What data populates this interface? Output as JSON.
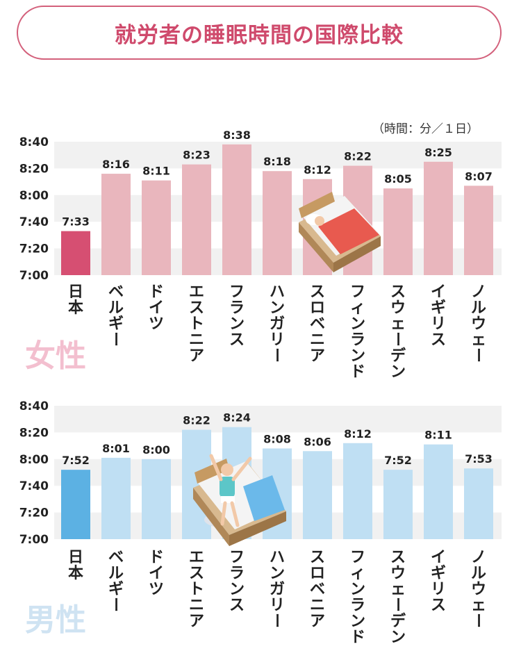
{
  "title": "就労者の睡眠時間の国際比較",
  "unit_note": "（時間：分／１日）",
  "colors": {
    "title": "#cf4a6c",
    "female_highlight": "#d64f72",
    "female_bar": "#e9b6bd",
    "male_highlight": "#5cb1e3",
    "male_bar": "#bfdff3",
    "grid_band": "#f1f1f1",
    "female_label": "#f3bfcf",
    "male_label": "#cfe3f2"
  },
  "chart_data": [
    {
      "type": "bar",
      "group_label": "女性",
      "categories": [
        "日本",
        "ベルギー",
        "ドイツ",
        "エストニア",
        "フランス",
        "ハンガリー",
        "スロベニア",
        "フィンランド",
        "スウェーデン",
        "イギリス",
        "ノルウェー"
      ],
      "values_minutes": [
        453,
        496,
        491,
        503,
        518,
        498,
        492,
        502,
        485,
        505,
        487
      ],
      "labels": [
        "7:33",
        "8:16",
        "8:11",
        "8:23",
        "8:38",
        "8:18",
        "8:12",
        "8:22",
        "8:05",
        "8:25",
        "8:07"
      ],
      "yticks": [
        "8:40",
        "8:20",
        "8:00",
        "7:40",
        "7:20",
        "7:00"
      ],
      "ylim_minutes": [
        420,
        520
      ],
      "highlight_index": 0
    },
    {
      "type": "bar",
      "group_label": "男性",
      "categories": [
        "日本",
        "ベルギー",
        "ドイツ",
        "エストニア",
        "フランス",
        "ハンガリー",
        "スロベニア",
        "フィンランド",
        "スウェーデン",
        "イギリス",
        "ノルウェー"
      ],
      "values_minutes": [
        472,
        481,
        480,
        502,
        504,
        488,
        486,
        492,
        472,
        491,
        473
      ],
      "labels": [
        "7:52",
        "8:01",
        "8:00",
        "8:22",
        "8:24",
        "8:08",
        "8:06",
        "8:12",
        "7:52",
        "8:11",
        "7:53"
      ],
      "yticks": [
        "8:40",
        "8:20",
        "8:00",
        "7:40",
        "7:20",
        "7:00"
      ],
      "ylim_minutes": [
        420,
        520
      ],
      "highlight_index": 0
    }
  ]
}
